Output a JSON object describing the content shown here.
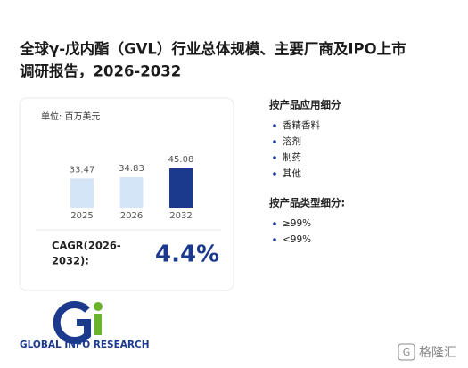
{
  "title_lines": [
    "全球γ-戊内酯（GVL）行业总体规模、主要厂商及IPO上市",
    "调研报告，2026-2032"
  ],
  "chart_data": {
    "type": "bar",
    "unit_label": "单位: 百万美元",
    "categories": [
      "2025",
      "2026",
      "2032"
    ],
    "values": [
      33.47,
      34.83,
      45.08
    ],
    "colors": [
      "#d5e5f8",
      "#d5e5f8",
      "#1b3a8e"
    ]
  },
  "cagr": {
    "label_lines": [
      "CAGR(2026-",
      "2032):"
    ],
    "value": "4.4%"
  },
  "segments": [
    {
      "heading": "按产品应用细分",
      "items": [
        "香精香料",
        "溶剂",
        "制药",
        "其他"
      ]
    },
    {
      "heading": "按产品类型细分:",
      "items": [
        "≥99%",
        "<99%"
      ]
    }
  ],
  "logo_text": "GLOBAL INFO RESEARCH",
  "watermark": "格隆汇"
}
